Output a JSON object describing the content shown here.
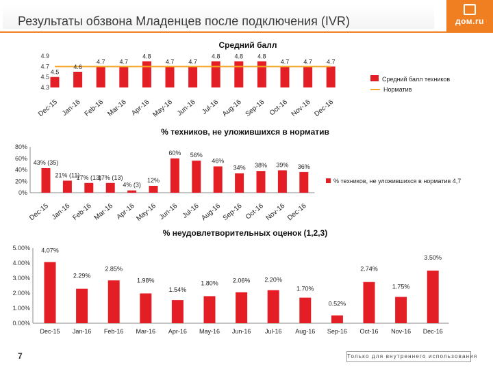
{
  "header": {
    "title": "Результаты обзвона Младенцев после подключения (IVR)",
    "logo_text": "дом.ru",
    "logo_icon": "house-icon",
    "accent_color": "#f07f22"
  },
  "chart_data": [
    {
      "type": "bar",
      "title": "Средний балл",
      "categories": [
        "Dec-15",
        "Jan-16",
        "Feb-16",
        "Mar-16",
        "Apr-16",
        "May-16",
        "Jun-16",
        "Jul-16",
        "Aug-16",
        "Sep-16",
        "Oct-16",
        "Nov-16",
        "Dec-16"
      ],
      "series": [
        {
          "name": "Средний балл техников",
          "type": "bar",
          "color": "#e31e24",
          "values": [
            4.5,
            4.6,
            4.7,
            4.7,
            4.8,
            4.7,
            4.7,
            4.8,
            4.8,
            4.8,
            4.7,
            4.7,
            4.7
          ]
        },
        {
          "name": "Норматив",
          "type": "line",
          "color": "#f5a623",
          "values": [
            4.7,
            4.7,
            4.7,
            4.7,
            4.7,
            4.7,
            4.7,
            4.7,
            4.7,
            4.7,
            4.7,
            4.7,
            4.7
          ]
        }
      ],
      "data_labels": [
        "4.5",
        "4.6",
        "4.7",
        "4.7",
        "4.8",
        "4.7",
        "4.7",
        "4.8",
        "4.8",
        "4.8",
        "4.7",
        "4.7",
        "4.7"
      ],
      "y_ticks": [
        "4.9",
        "4.7",
        "4.5",
        "4.3"
      ],
      "ylim": [
        4.3,
        4.9
      ],
      "legend_position": "right"
    },
    {
      "type": "bar",
      "title": "% техников, не уложившихся в норматив",
      "categories": [
        "Dec-15",
        "Jan-16",
        "Feb-16",
        "Mar-16",
        "Apr-16",
        "May-16",
        "Jun-16",
        "Jul-16",
        "Aug-16",
        "Sep-16",
        "Oct-16",
        "Nov-16",
        "Dec-16"
      ],
      "series": [
        {
          "name": "% техников, не уложившихся в норматив 4,7",
          "color": "#e31e24",
          "values": [
            43,
            21,
            17,
            17,
            4,
            12,
            60,
            56,
            46,
            34,
            38,
            39,
            36
          ]
        }
      ],
      "data_labels": [
        "43% (35)",
        "21% (11)",
        "17% (13)",
        "17% (13)",
        "4% (3)",
        "12%",
        "60%",
        "56%",
        "46%",
        "34%",
        "38%",
        "39%",
        "36%"
      ],
      "y_ticks": [
        "80%",
        "60%",
        "40%",
        "20%",
        "0%"
      ],
      "ylim": [
        0,
        80
      ],
      "legend_position": "right"
    },
    {
      "type": "bar",
      "title": "% неудовлетворительных оценок (1,2,3)",
      "categories": [
        "Dec-15",
        "Jan-16",
        "Feb-16",
        "Mar-16",
        "Apr-16",
        "May-16",
        "Jun-16",
        "Jul-16",
        "Aug-16",
        "Sep-16",
        "Oct-16",
        "Nov-16",
        "Dec-16"
      ],
      "series": [
        {
          "name": "",
          "color": "#e31e24",
          "values": [
            4.07,
            2.29,
            2.85,
            1.98,
            1.54,
            1.8,
            2.06,
            2.2,
            1.7,
            0.52,
            2.74,
            1.75,
            3.5
          ]
        }
      ],
      "data_labels": [
        "4.07%",
        "2.29%",
        "2.85%",
        "1.98%",
        "1.54%",
        "1.80%",
        "2.06%",
        "2.20%",
        "1.70%",
        "0.52%",
        "2.74%",
        "1.75%",
        "3.50%"
      ],
      "y_ticks": [
        "5.00%",
        "4.00%",
        "3.00%",
        "2.00%",
        "1.00%",
        "0.00%"
      ],
      "ylim": [
        0,
        5
      ],
      "grid": false
    }
  ],
  "footer": {
    "page_number": "7",
    "note": "Только для внутреннего использования"
  }
}
